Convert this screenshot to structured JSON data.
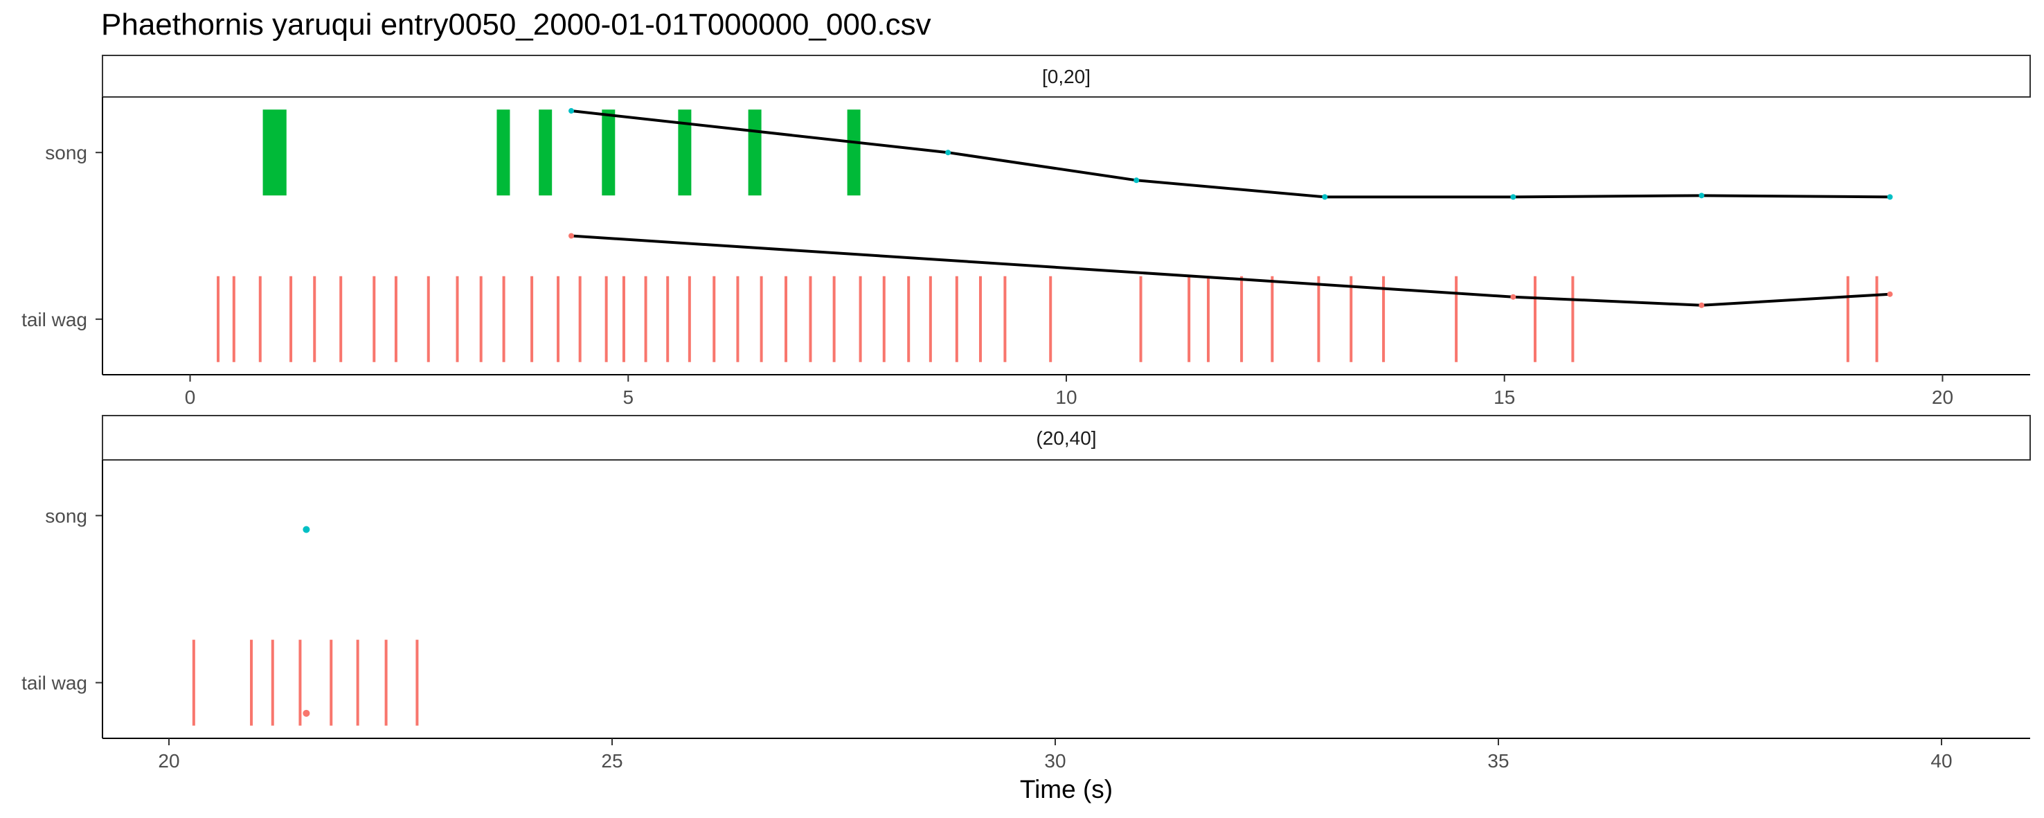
{
  "chart_data": {
    "type": "faceted event raster with trend lines",
    "title": "Phaethornis yaruqui   entry0050_2000-01-01T000000_000.csv",
    "xlabel": "Time (s)",
    "ylabel": "",
    "categories": [
      "song",
      "tail wag"
    ],
    "colors": {
      "song": "#00ba38",
      "tail_wag": "#f8766d",
      "song_point": "#00bfc4",
      "trend_line": "#000000"
    },
    "grid": false,
    "legend": "none",
    "panels": [
      {
        "label": "[0,20]",
        "xlim": [
          -1,
          21
        ],
        "xticks": [
          0,
          5,
          10,
          15,
          20
        ],
        "song_segments": [
          [
            0.83,
            1.1
          ],
          [
            3.5,
            3.65
          ],
          [
            3.98,
            4.13
          ],
          [
            4.7,
            4.85
          ],
          [
            5.57,
            5.72
          ],
          [
            6.37,
            6.52
          ],
          [
            7.5,
            7.65
          ]
        ],
        "tail_wag_events": [
          0.32,
          0.5,
          0.8,
          1.15,
          1.42,
          1.72,
          2.1,
          2.35,
          2.72,
          3.05,
          3.32,
          3.58,
          3.9,
          4.2,
          4.45,
          4.75,
          4.95,
          5.2,
          5.45,
          5.7,
          5.98,
          6.25,
          6.52,
          6.8,
          7.08,
          7.35,
          7.65,
          7.92,
          8.2,
          8.45,
          8.75,
          9.02,
          9.3,
          9.82,
          10.85,
          11.4,
          11.62,
          12.0,
          12.35,
          12.88,
          13.25,
          13.62,
          14.45,
          15.35,
          15.78,
          18.92,
          19.25
        ],
        "song_trend": {
          "x": [
            4.35,
            8.65,
            10.8,
            12.95,
            15.1,
            17.25,
            19.4
          ],
          "y": [
            0.95,
            0.8,
            0.7,
            0.64,
            0.64,
            0.645,
            0.64
          ]
        },
        "tail_wag_trend": {
          "x": [
            4.35,
            15.1,
            17.25,
            19.4
          ],
          "y": [
            0.5,
            0.28,
            0.25,
            0.29
          ]
        }
      },
      {
        "label": "(20,40]",
        "xlim": [
          19.25,
          41.0
        ],
        "xticks": [
          20,
          25,
          30,
          35,
          40
        ],
        "song_segments": [],
        "tail_wag_events": [
          20.28,
          20.93,
          21.17,
          21.48,
          21.83,
          22.13,
          22.45,
          22.8
        ],
        "song_points": [
          {
            "x": 21.55,
            "y": 0.75
          }
        ],
        "tail_wag_points": [
          {
            "x": 21.55,
            "y": 0.09
          }
        ]
      }
    ]
  }
}
